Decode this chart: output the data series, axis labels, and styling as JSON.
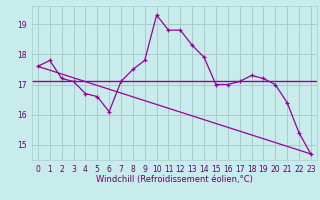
{
  "xlabel": "Windchill (Refroidissement éolien,°C)",
  "bg_color": "#c8ecec",
  "grid_color": "#aacccc",
  "line_color": "#990099",
  "xlim": [
    -0.5,
    23.5
  ],
  "ylim": [
    14.5,
    19.6
  ],
  "yticks": [
    15,
    16,
    17,
    18,
    19
  ],
  "xticks": [
    0,
    1,
    2,
    3,
    4,
    5,
    6,
    7,
    8,
    9,
    10,
    11,
    12,
    13,
    14,
    15,
    16,
    17,
    18,
    19,
    20,
    21,
    22,
    23
  ],
  "hours": [
    0,
    1,
    2,
    3,
    4,
    5,
    6,
    7,
    8,
    9,
    10,
    11,
    12,
    13,
    14,
    15,
    16,
    17,
    18,
    19,
    20,
    21,
    22,
    23
  ],
  "temp_line": [
    17.6,
    17.8,
    17.2,
    17.1,
    16.7,
    16.6,
    16.1,
    17.1,
    17.5,
    17.8,
    19.3,
    18.8,
    18.8,
    18.3,
    17.9,
    17.0,
    17.0,
    17.1,
    17.3,
    17.2,
    17.0,
    16.4,
    15.4,
    14.7
  ],
  "avg_value": 17.1,
  "trend_line_start": 17.6,
  "trend_line_end": 14.7,
  "font_color": "#660066",
  "tick_fontsize": 5.5,
  "xlabel_fontsize": 6.0
}
